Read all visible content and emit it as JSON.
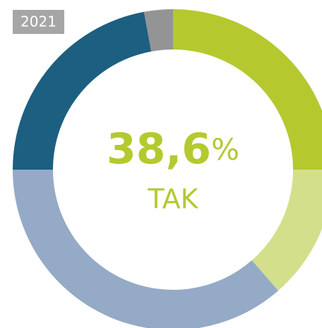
{
  "chart_data": {
    "type": "donut",
    "year_badge": "2021",
    "center_value": "38,6",
    "center_unit": "%",
    "center_label": "TAK",
    "values": [
      25.0,
      13.6,
      36.4,
      22.1,
      2.9
    ],
    "colors": [
      "#b5c92f",
      "#d4df8c",
      "#94aac6",
      "#1d5f80",
      "#949494"
    ]
  }
}
